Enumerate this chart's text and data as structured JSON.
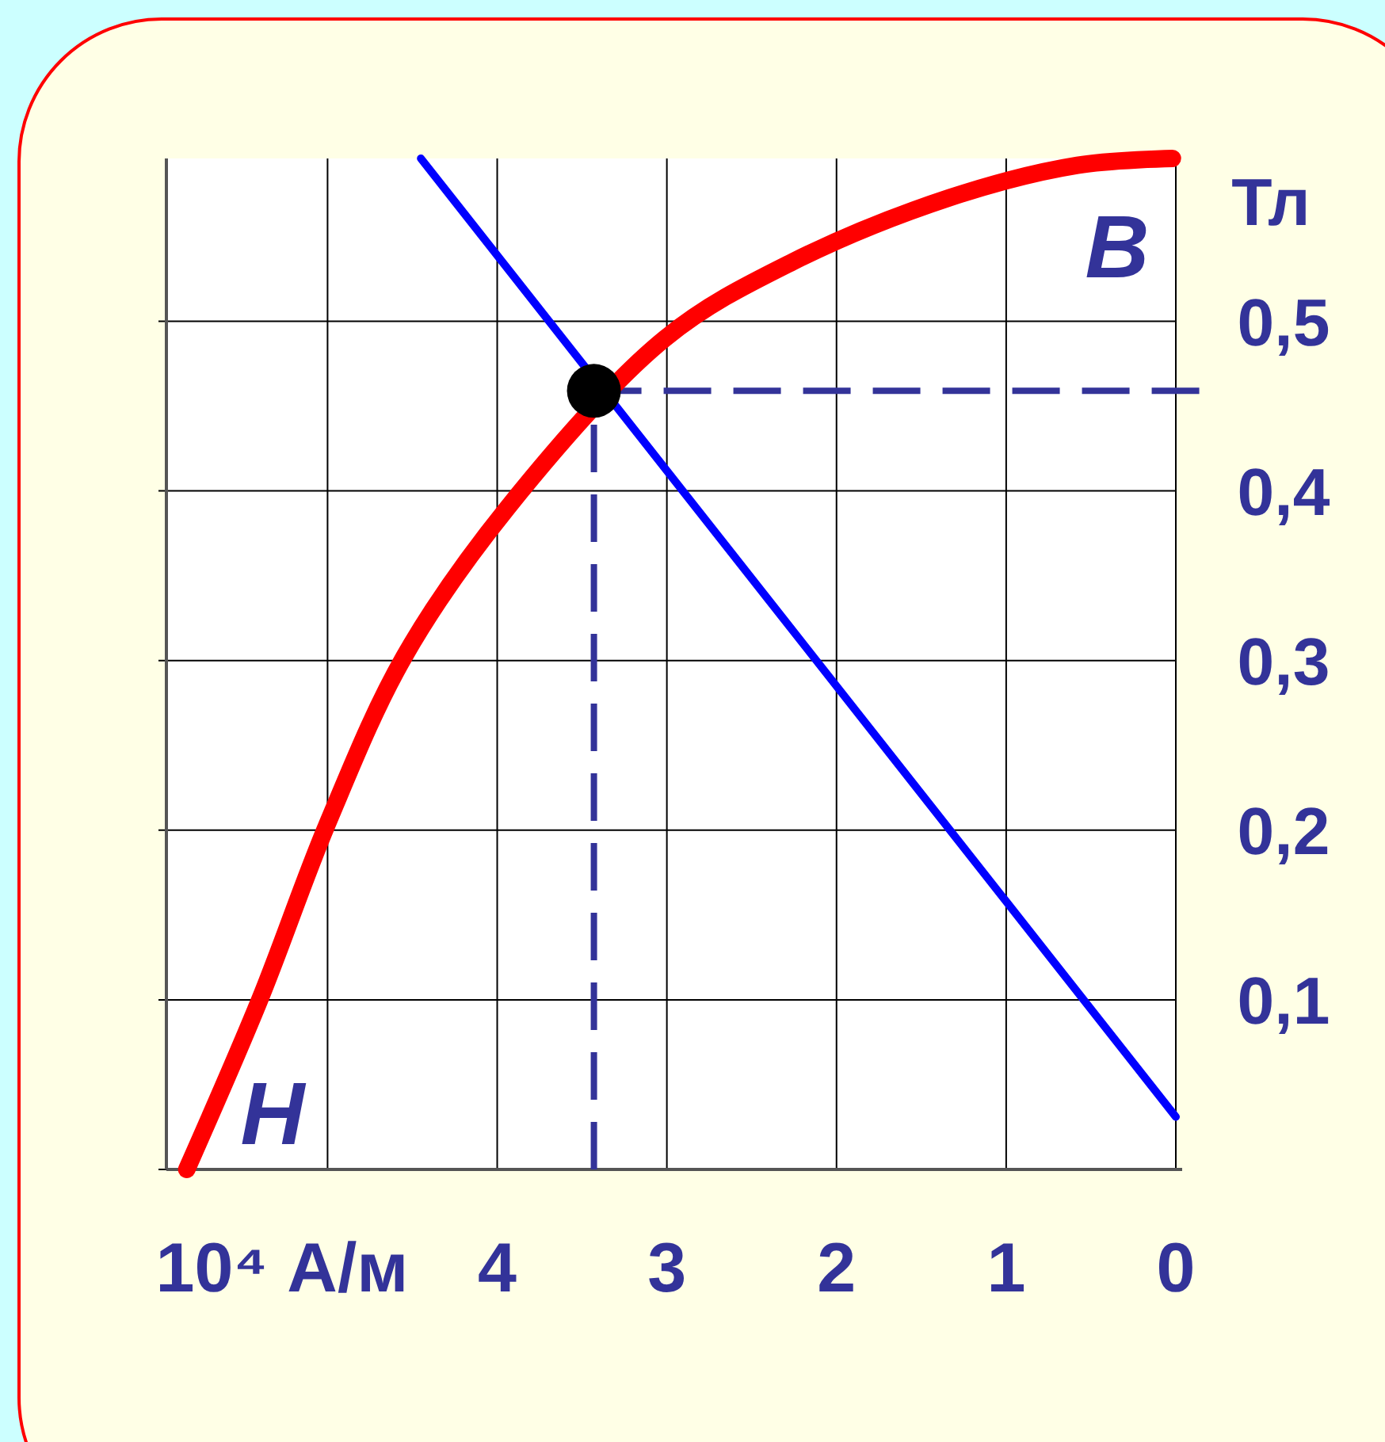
{
  "chart_data": {
    "type": "line",
    "xlabel": "10⁴ А/м",
    "ylabel": "Тл",
    "annotations": [
      "B",
      "H"
    ],
    "xlim": [
      5.95,
      0
    ],
    "ylim": [
      0,
      0.596
    ],
    "xticks": [
      {
        "value": 5,
        "label": null
      },
      4,
      3,
      2,
      1,
      0
    ],
    "yticks": [
      {
        "value": 0,
        "label": null
      },
      {
        "value": 0.1,
        "label": "0,1"
      },
      {
        "value": 0.2,
        "label": "0,2"
      },
      {
        "value": 0.3,
        "label": "0,3"
      },
      {
        "value": 0.4,
        "label": "0,4"
      },
      {
        "value": 0.5,
        "label": "0,5"
      }
    ],
    "grid": true,
    "series": [
      {
        "color": "#ff0000",
        "x": [
          5.83,
          5.4,
          5.0,
          4.55,
          3.94,
          3.01,
          2.26,
          1.33,
          0.58,
          0.02
        ],
        "values": [
          0,
          0.1,
          0.204,
          0.302,
          0.39,
          0.49,
          0.535,
          0.573,
          0.592,
          0.596
        ]
      },
      {
        "color": "#0000ff",
        "x": [
          4.45,
          0
        ],
        "values": [
          0.596,
          0.031
        ]
      },
      {
        "type": "scatter",
        "color": "#000000",
        "marker": "circle",
        "x": [
          3.43
        ],
        "values": [
          0.459
        ]
      }
    ],
    "ref_lines": [
      {
        "axis": "x",
        "value": 3.43,
        "label": null,
        "color": "#333399",
        "line_style": "dashed"
      },
      {
        "axis": "y",
        "value": 0.459,
        "label": null,
        "color": "#333399",
        "line_style": "dashed"
      }
    ]
  }
}
